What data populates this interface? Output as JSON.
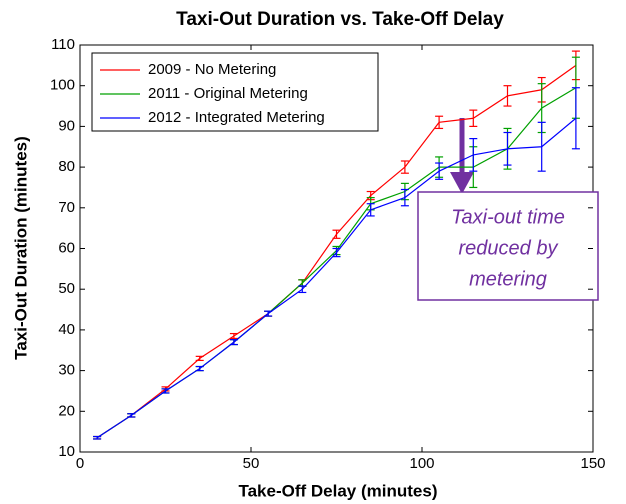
{
  "chart_data": {
    "type": "line",
    "title": "Taxi-Out Duration vs. Take-Off Delay",
    "x_label": "Take-Off Delay (minutes)",
    "y_label": "Taxi-Out Duration (minutes)",
    "x": [
      5,
      15,
      25,
      35,
      45,
      55,
      65,
      75,
      85,
      95,
      105,
      115,
      125,
      135,
      145
    ],
    "series": [
      {
        "name": "2009 - No Metering",
        "color": "#ff0000",
        "values": [
          13.5,
          19,
          25.5,
          33,
          38.5,
          44,
          51.5,
          63.5,
          73,
          80,
          91,
          92,
          97.5,
          99,
          105
        ],
        "errors": [
          0.3,
          0.4,
          0.5,
          0.5,
          0.6,
          0.6,
          0.8,
          1,
          1,
          1.5,
          1.5,
          2,
          2.5,
          3,
          3.5
        ]
      },
      {
        "name": "2011 - Original Metering",
        "color": "#00a000",
        "values": [
          13.5,
          19,
          25,
          30.5,
          37,
          44,
          51.5,
          59.5,
          71,
          74,
          80,
          80,
          84.5,
          94.5,
          99.5
        ],
        "errors": [
          0.3,
          0.4,
          0.5,
          0.5,
          0.6,
          0.6,
          0.8,
          1,
          1.5,
          2,
          2.5,
          5,
          5,
          6,
          7.5
        ]
      },
      {
        "name": "2012 - Integrated Metering",
        "color": "#0000ff",
        "values": [
          13.5,
          19,
          25,
          30.5,
          37,
          44,
          50,
          59,
          69.5,
          72.5,
          79,
          83,
          84.5,
          85,
          92
        ],
        "errors": [
          0.3,
          0.4,
          0.5,
          0.5,
          0.6,
          0.6,
          0.8,
          1,
          1.5,
          2,
          2,
          4,
          4,
          6,
          7.5
        ]
      }
    ],
    "xlim": [
      0,
      150
    ],
    "xticks": [
      0,
      50,
      100,
      150
    ],
    "ylim": [
      10,
      110
    ],
    "yticks": [
      10,
      20,
      30,
      40,
      50,
      60,
      70,
      80,
      90,
      100,
      110
    ],
    "grid": false,
    "legend": "upper left",
    "annotation": [
      "Taxi-out time",
      "reduced by",
      "metering"
    ]
  }
}
